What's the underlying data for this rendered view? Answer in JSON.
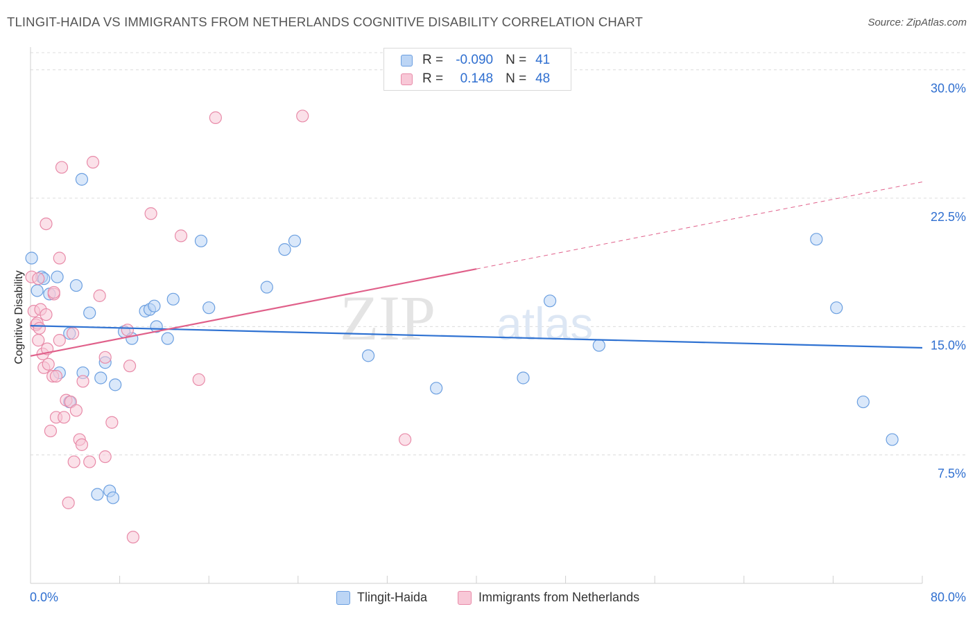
{
  "title": "TLINGIT-HAIDA VS IMMIGRANTS FROM NETHERLANDS COGNITIVE DISABILITY CORRELATION CHART",
  "source": "Source: ZipAtlas.com",
  "watermark": {
    "zip": "ZIP",
    "atlas": "atlas"
  },
  "colors": {
    "blue_fill": "#bcd5f5",
    "blue_stroke": "#6b9fe0",
    "blue_line": "#2f72d2",
    "pink_fill": "#f8c8d7",
    "pink_stroke": "#e88aa8",
    "pink_line": "#e0608a",
    "grid": "#dcdcdc",
    "tick_label": "#2f6fd0"
  },
  "legend": {
    "r_label": "R =",
    "n_label": "N =",
    "series": [
      {
        "r": "-0.090",
        "n": "41"
      },
      {
        "r": "0.148",
        "n": "48"
      }
    ]
  },
  "chart_data": {
    "type": "scatter",
    "title": "TLINGIT-HAIDA VS IMMIGRANTS FROM NETHERLANDS COGNITIVE DISABILITY CORRELATION CHART",
    "xlabel": "",
    "ylabel": "Cognitive Disability",
    "xlim": [
      0,
      80
    ],
    "ylim": [
      0,
      31
    ],
    "x_tick_labels": [
      "0.0%",
      "80.0%"
    ],
    "y_ticks": [
      7.5,
      15.0,
      22.5,
      30.0
    ],
    "y_tick_labels": [
      "7.5%",
      "15.0%",
      "22.5%",
      "30.0%"
    ],
    "grid": true,
    "series": [
      {
        "name": "Tlingit-Haida",
        "color": "blue",
        "trend": {
          "x": [
            0,
            80
          ],
          "y": [
            15.05,
            13.76
          ],
          "style": "solid"
        },
        "points": [
          [
            0.1,
            19.0
          ],
          [
            0.6,
            17.1
          ],
          [
            1.0,
            17.9
          ],
          [
            1.2,
            17.8
          ],
          [
            1.7,
            16.9
          ],
          [
            2.4,
            17.9
          ],
          [
            2.6,
            12.3
          ],
          [
            3.5,
            10.6
          ],
          [
            3.5,
            14.6
          ],
          [
            4.1,
            17.4
          ],
          [
            4.6,
            23.6
          ],
          [
            4.7,
            12.3
          ],
          [
            5.3,
            15.8
          ],
          [
            6.3,
            12.0
          ],
          [
            6.7,
            12.9
          ],
          [
            7.6,
            11.6
          ],
          [
            7.1,
            5.4
          ],
          [
            6.0,
            5.2
          ],
          [
            7.4,
            5.0
          ],
          [
            8.4,
            14.7
          ],
          [
            9.1,
            14.3
          ],
          [
            10.3,
            15.9
          ],
          [
            10.7,
            16.0
          ],
          [
            11.1,
            16.2
          ],
          [
            11.3,
            15.0
          ],
          [
            12.3,
            14.3
          ],
          [
            12.8,
            16.6
          ],
          [
            15.3,
            20.0
          ],
          [
            16.0,
            16.1
          ],
          [
            21.2,
            17.3
          ],
          [
            22.8,
            19.5
          ],
          [
            23.7,
            20.0
          ],
          [
            30.3,
            13.3
          ],
          [
            36.4,
            11.4
          ],
          [
            44.2,
            12.0
          ],
          [
            46.6,
            16.5
          ],
          [
            51.0,
            13.9
          ],
          [
            70.5,
            20.1
          ],
          [
            72.3,
            16.1
          ],
          [
            74.7,
            10.6
          ],
          [
            77.3,
            8.4
          ]
        ]
      },
      {
        "name": "Immigrants from Netherlands",
        "color": "pink",
        "trend": {
          "x": [
            0,
            80
          ],
          "y": [
            13.28,
            23.45
          ],
          "style": "solid-to-dashed",
          "solid_until_x": 40
        },
        "points": [
          [
            0.1,
            17.9
          ],
          [
            0.3,
            15.9
          ],
          [
            0.5,
            15.1
          ],
          [
            0.6,
            15.2
          ],
          [
            0.7,
            14.2
          ],
          [
            0.8,
            14.9
          ],
          [
            0.9,
            16.0
          ],
          [
            1.1,
            13.4
          ],
          [
            1.2,
            12.6
          ],
          [
            1.4,
            15.7
          ],
          [
            1.5,
            13.7
          ],
          [
            1.6,
            12.8
          ],
          [
            1.4,
            21.0
          ],
          [
            1.8,
            8.9
          ],
          [
            2.0,
            12.1
          ],
          [
            2.1,
            16.9
          ],
          [
            2.3,
            12.1
          ],
          [
            2.1,
            17.0
          ],
          [
            2.3,
            9.7
          ],
          [
            2.6,
            19.0
          ],
          [
            2.6,
            14.2
          ],
          [
            2.8,
            24.3
          ],
          [
            3.0,
            9.7
          ],
          [
            3.2,
            10.7
          ],
          [
            3.4,
            4.7
          ],
          [
            3.6,
            10.6
          ],
          [
            3.8,
            14.6
          ],
          [
            3.9,
            7.1
          ],
          [
            4.1,
            10.1
          ],
          [
            4.4,
            8.4
          ],
          [
            4.6,
            8.1
          ],
          [
            4.7,
            11.8
          ],
          [
            5.3,
            7.1
          ],
          [
            5.6,
            24.6
          ],
          [
            6.2,
            16.8
          ],
          [
            6.7,
            7.4
          ],
          [
            6.7,
            13.2
          ],
          [
            7.3,
            9.4
          ],
          [
            8.7,
            14.8
          ],
          [
            8.9,
            12.7
          ],
          [
            9.2,
            2.7
          ],
          [
            10.8,
            21.6
          ],
          [
            13.5,
            20.3
          ],
          [
            15.1,
            11.9
          ],
          [
            16.6,
            27.2
          ],
          [
            24.4,
            27.3
          ],
          [
            33.6,
            8.4
          ],
          [
            0.7,
            17.8
          ]
        ]
      }
    ]
  },
  "bottom_legend": [
    "Tlingit-Haida",
    "Immigrants from Netherlands"
  ]
}
